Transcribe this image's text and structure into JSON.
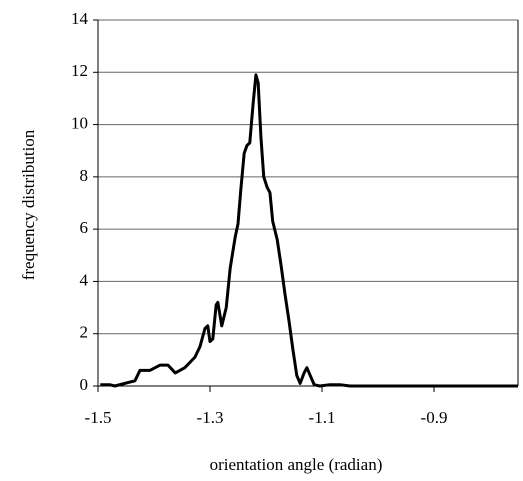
{
  "chart_data": {
    "type": "line",
    "x_label": "orientation angle (radian)",
    "y_label": "frequency distribution",
    "x": [
      -1.496,
      -1.479,
      -1.47,
      -1.452,
      -1.434,
      -1.425,
      -1.416,
      -1.407,
      -1.389,
      -1.375,
      -1.362,
      -1.345,
      -1.327,
      -1.318,
      -1.309,
      -1.304,
      -1.3,
      -1.295,
      -1.289,
      -1.286,
      -1.279,
      -1.271,
      -1.264,
      -1.255,
      -1.25,
      -1.245,
      -1.239,
      -1.234,
      -1.229,
      -1.223,
      -1.218,
      -1.214,
      -1.209,
      -1.204,
      -1.198,
      -1.193,
      -1.188,
      -1.18,
      -1.173,
      -1.166,
      -1.159,
      -1.152,
      -1.145,
      -1.139,
      -1.132,
      -1.127,
      -1.121,
      -1.114,
      -1.104,
      -1.086,
      -1.068,
      -1.05,
      -0.75
    ],
    "series": [
      {
        "name": "frequency",
        "color": "#000000",
        "values": [
          0.05,
          0.05,
          0,
          0.1,
          0.2,
          0.6,
          0.6,
          0.6,
          0.8,
          0.8,
          0.5,
          0.7,
          1.1,
          1.5,
          2.2,
          2.3,
          1.7,
          1.8,
          3.1,
          3.2,
          2.3,
          3.0,
          4.5,
          5.7,
          6.2,
          7.5,
          8.9,
          9.2,
          9.3,
          10.8,
          11.9,
          11.6,
          9.5,
          8.0,
          7.6,
          7.4,
          6.3,
          5.6,
          4.6,
          3.5,
          2.5,
          1.4,
          0.4,
          0.1,
          0.5,
          0.7,
          0.4,
          0.05,
          0,
          0.05,
          0.05,
          0,
          0
        ]
      }
    ],
    "xlim": [
      -1.5,
      -0.75
    ],
    "xticks": [
      -1.5,
      -1.3,
      -1.1,
      -0.9
    ],
    "ylim": [
      0,
      14
    ],
    "yticks": [
      0,
      2,
      4,
      6,
      8,
      10,
      12,
      14
    ],
    "grid": true
  }
}
